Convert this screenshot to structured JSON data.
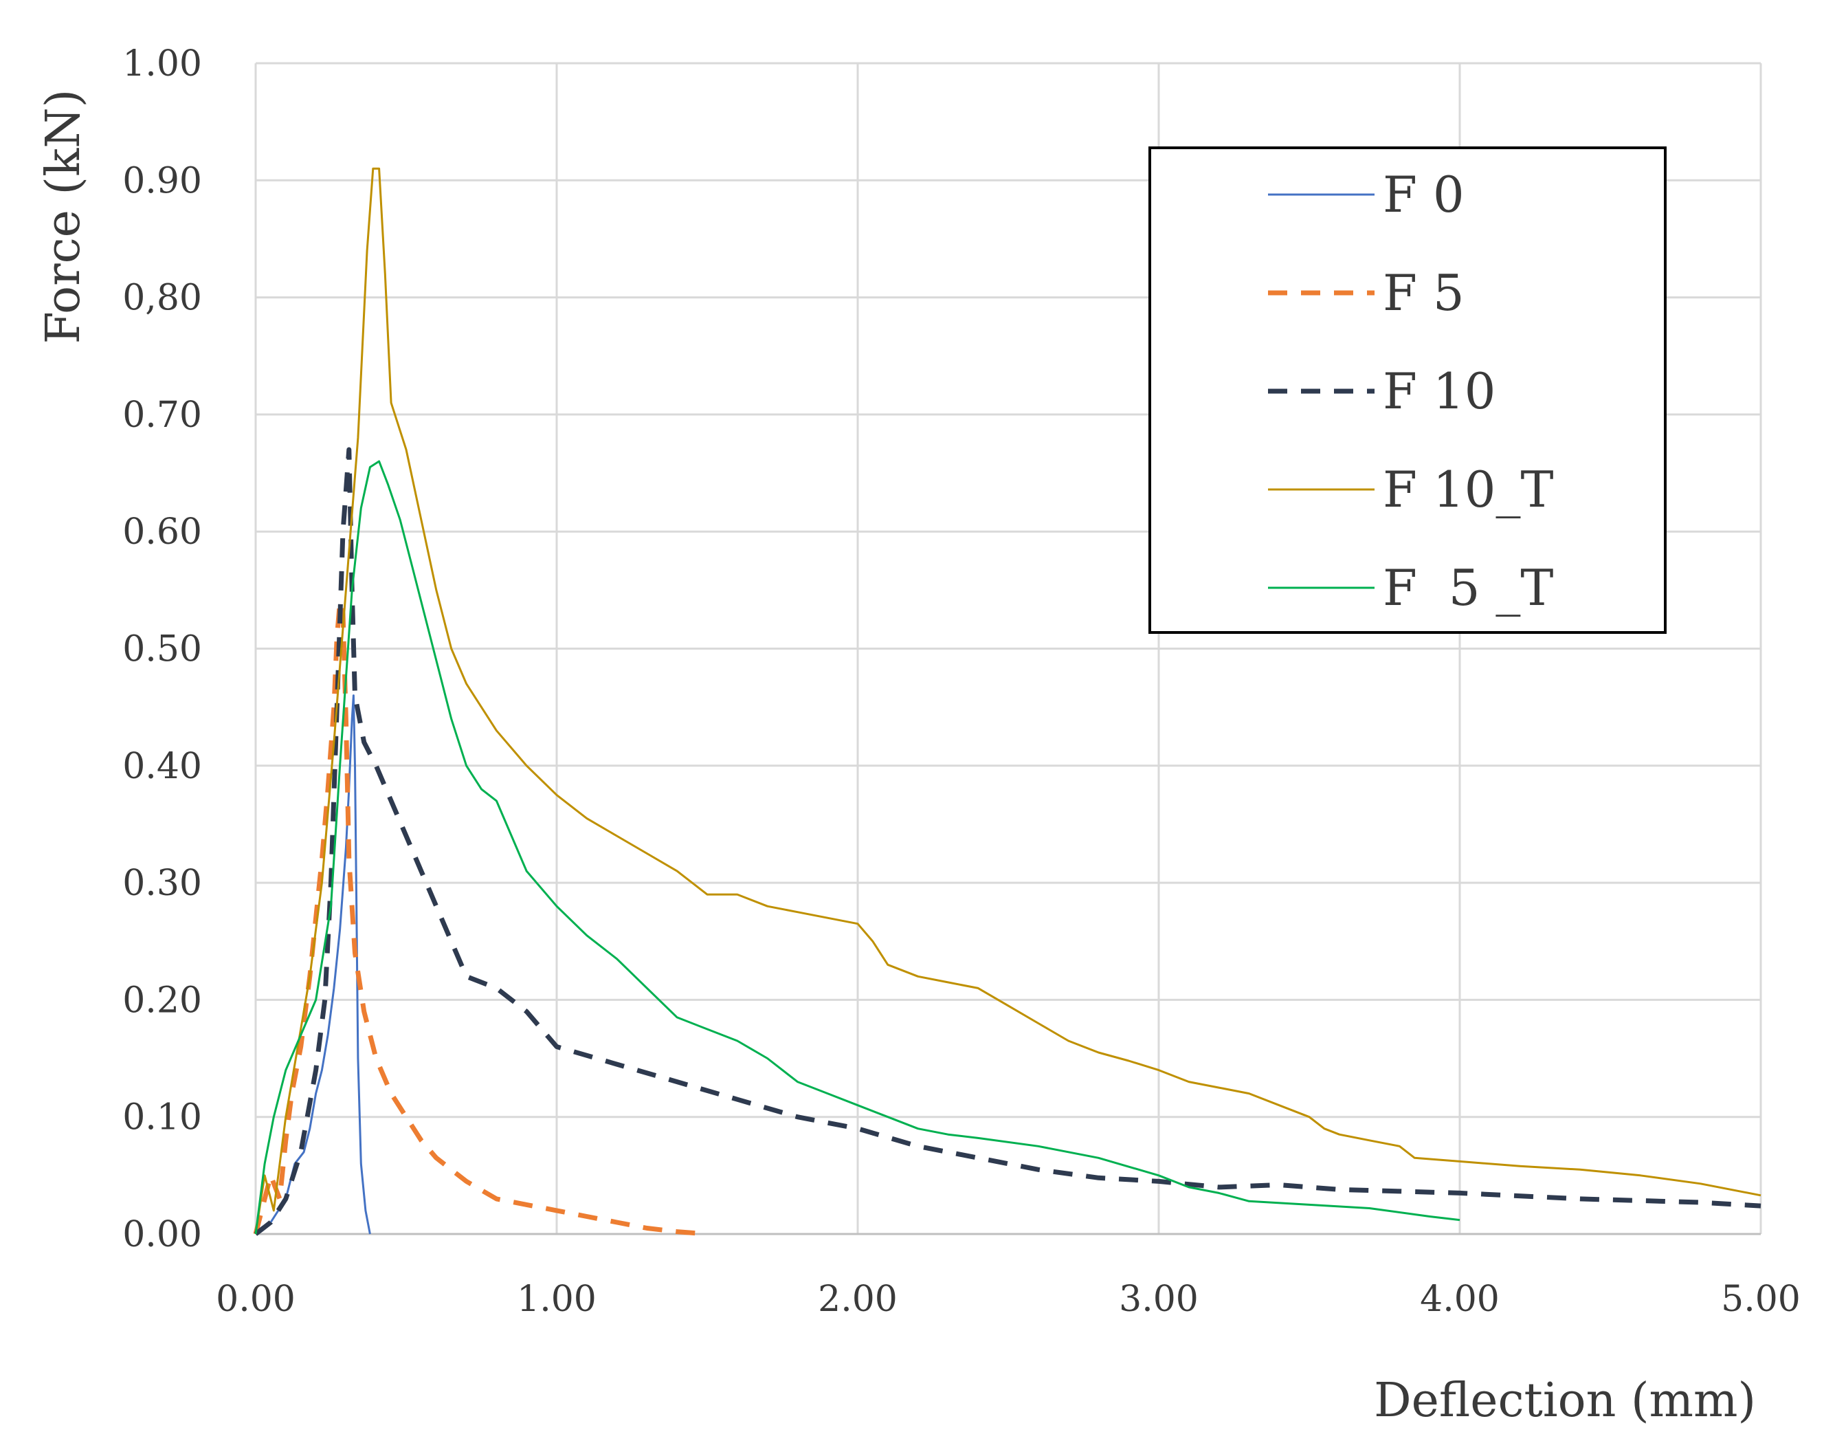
{
  "chart_data": {
    "type": "line",
    "title": "",
    "xlabel": "Deflection (mm)",
    "ylabel": "Force (kN)",
    "xlim": [
      0,
      5
    ],
    "ylim": [
      0,
      1
    ],
    "grid": true,
    "legend_position": "top-right",
    "x_tick_labels": [
      "0.00",
      "1.00",
      "2.00",
      "3.00",
      "4.00",
      "5.00"
    ],
    "y_tick_labels": [
      "0.00",
      "0.10",
      "0.20",
      "0.30",
      "0.40",
      "0.50",
      "0.60",
      "0.70",
      "0,80",
      "0.90",
      "1.00"
    ],
    "series": [
      {
        "name": "F 0",
        "color": "#4472c4",
        "dash": "solid",
        "points": [
          [
            0,
            0
          ],
          [
            0.05,
            0.01
          ],
          [
            0.1,
            0.03
          ],
          [
            0.13,
            0.06
          ],
          [
            0.16,
            0.07
          ],
          [
            0.18,
            0.09
          ],
          [
            0.2,
            0.12
          ],
          [
            0.22,
            0.14
          ],
          [
            0.24,
            0.17
          ],
          [
            0.26,
            0.21
          ],
          [
            0.28,
            0.26
          ],
          [
            0.3,
            0.33
          ],
          [
            0.31,
            0.38
          ],
          [
            0.32,
            0.44
          ],
          [
            0.325,
            0.46
          ],
          [
            0.33,
            0.4
          ],
          [
            0.335,
            0.28
          ],
          [
            0.34,
            0.15
          ],
          [
            0.35,
            0.06
          ],
          [
            0.365,
            0.02
          ],
          [
            0.38,
            0
          ]
        ]
      },
      {
        "name": "F 5",
        "color": "#ed7d31",
        "dash": "dashed",
        "points": [
          [
            0,
            0
          ],
          [
            0.05,
            0.05
          ],
          [
            0.08,
            0.03
          ],
          [
            0.1,
            0.08
          ],
          [
            0.12,
            0.12
          ],
          [
            0.15,
            0.16
          ],
          [
            0.18,
            0.22
          ],
          [
            0.2,
            0.27
          ],
          [
            0.22,
            0.32
          ],
          [
            0.24,
            0.38
          ],
          [
            0.26,
            0.45
          ],
          [
            0.27,
            0.51
          ],
          [
            0.28,
            0.54
          ],
          [
            0.29,
            0.53
          ],
          [
            0.3,
            0.44
          ],
          [
            0.31,
            0.32
          ],
          [
            0.33,
            0.24
          ],
          [
            0.36,
            0.19
          ],
          [
            0.4,
            0.15
          ],
          [
            0.45,
            0.12
          ],
          [
            0.5,
            0.1
          ],
          [
            0.55,
            0.08
          ],
          [
            0.6,
            0.065
          ],
          [
            0.7,
            0.045
          ],
          [
            0.8,
            0.03
          ],
          [
            0.9,
            0.025
          ],
          [
            1.0,
            0.02
          ],
          [
            1.1,
            0.015
          ],
          [
            1.2,
            0.01
          ],
          [
            1.3,
            0.005
          ],
          [
            1.4,
            0.002
          ],
          [
            1.5,
            0
          ]
        ]
      },
      {
        "name": "F 10",
        "color": "#2e3a4f",
        "dash": "dashed",
        "points": [
          [
            0,
            0
          ],
          [
            0.05,
            0.01
          ],
          [
            0.1,
            0.03
          ],
          [
            0.15,
            0.07
          ],
          [
            0.2,
            0.14
          ],
          [
            0.23,
            0.2
          ],
          [
            0.25,
            0.3
          ],
          [
            0.27,
            0.45
          ],
          [
            0.29,
            0.6
          ],
          [
            0.31,
            0.67
          ],
          [
            0.32,
            0.55
          ],
          [
            0.33,
            0.46
          ],
          [
            0.36,
            0.42
          ],
          [
            0.4,
            0.4
          ],
          [
            0.45,
            0.37
          ],
          [
            0.5,
            0.34
          ],
          [
            0.55,
            0.31
          ],
          [
            0.6,
            0.28
          ],
          [
            0.65,
            0.25
          ],
          [
            0.7,
            0.22
          ],
          [
            0.8,
            0.21
          ],
          [
            0.9,
            0.19
          ],
          [
            1.0,
            0.16
          ],
          [
            1.2,
            0.145
          ],
          [
            1.4,
            0.13
          ],
          [
            1.6,
            0.115
          ],
          [
            1.8,
            0.1
          ],
          [
            2.0,
            0.09
          ],
          [
            2.2,
            0.075
          ],
          [
            2.4,
            0.065
          ],
          [
            2.6,
            0.055
          ],
          [
            2.8,
            0.048
          ],
          [
            3.0,
            0.045
          ],
          [
            3.2,
            0.04
          ],
          [
            3.4,
            0.042
          ],
          [
            3.6,
            0.038
          ],
          [
            4.0,
            0.035
          ],
          [
            4.4,
            0.03
          ],
          [
            4.8,
            0.027
          ],
          [
            5.0,
            0.024
          ]
        ]
      },
      {
        "name": "F 10_T",
        "color": "#bf9000",
        "dash": "solid",
        "points": [
          [
            0,
            0
          ],
          [
            0.03,
            0.05
          ],
          [
            0.06,
            0.02
          ],
          [
            0.1,
            0.1
          ],
          [
            0.14,
            0.16
          ],
          [
            0.18,
            0.22
          ],
          [
            0.22,
            0.3
          ],
          [
            0.26,
            0.42
          ],
          [
            0.3,
            0.55
          ],
          [
            0.34,
            0.68
          ],
          [
            0.37,
            0.84
          ],
          [
            0.39,
            0.91
          ],
          [
            0.41,
            0.91
          ],
          [
            0.43,
            0.82
          ],
          [
            0.45,
            0.71
          ],
          [
            0.5,
            0.67
          ],
          [
            0.55,
            0.61
          ],
          [
            0.6,
            0.55
          ],
          [
            0.65,
            0.5
          ],
          [
            0.7,
            0.47
          ],
          [
            0.8,
            0.43
          ],
          [
            0.9,
            0.4
          ],
          [
            1.0,
            0.375
          ],
          [
            1.1,
            0.355
          ],
          [
            1.2,
            0.34
          ],
          [
            1.3,
            0.325
          ],
          [
            1.4,
            0.31
          ],
          [
            1.5,
            0.29
          ],
          [
            1.6,
            0.29
          ],
          [
            1.7,
            0.28
          ],
          [
            1.8,
            0.275
          ],
          [
            1.9,
            0.27
          ],
          [
            2.0,
            0.265
          ],
          [
            2.05,
            0.25
          ],
          [
            2.1,
            0.23
          ],
          [
            2.2,
            0.22
          ],
          [
            2.3,
            0.215
          ],
          [
            2.4,
            0.21
          ],
          [
            2.5,
            0.195
          ],
          [
            2.6,
            0.18
          ],
          [
            2.7,
            0.165
          ],
          [
            2.8,
            0.155
          ],
          [
            2.9,
            0.148
          ],
          [
            3.0,
            0.14
          ],
          [
            3.1,
            0.13
          ],
          [
            3.2,
            0.125
          ],
          [
            3.3,
            0.12
          ],
          [
            3.4,
            0.11
          ],
          [
            3.5,
            0.1
          ],
          [
            3.55,
            0.09
          ],
          [
            3.6,
            0.085
          ],
          [
            3.7,
            0.08
          ],
          [
            3.8,
            0.075
          ],
          [
            3.85,
            0.065
          ],
          [
            4.0,
            0.062
          ],
          [
            4.2,
            0.058
          ],
          [
            4.4,
            0.055
          ],
          [
            4.6,
            0.05
          ],
          [
            4.8,
            0.043
          ],
          [
            5.0,
            0.033
          ]
        ]
      },
      {
        "name": "F  5 _T",
        "color": "#00b050",
        "dash": "solid",
        "points": [
          [
            0,
            0
          ],
          [
            0.03,
            0.06
          ],
          [
            0.06,
            0.1
          ],
          [
            0.1,
            0.14
          ],
          [
            0.15,
            0.17
          ],
          [
            0.2,
            0.2
          ],
          [
            0.25,
            0.28
          ],
          [
            0.28,
            0.4
          ],
          [
            0.32,
            0.55
          ],
          [
            0.35,
            0.62
          ],
          [
            0.38,
            0.655
          ],
          [
            0.41,
            0.66
          ],
          [
            0.44,
            0.64
          ],
          [
            0.48,
            0.61
          ],
          [
            0.52,
            0.57
          ],
          [
            0.56,
            0.53
          ],
          [
            0.6,
            0.49
          ],
          [
            0.65,
            0.44
          ],
          [
            0.7,
            0.4
          ],
          [
            0.75,
            0.38
          ],
          [
            0.8,
            0.37
          ],
          [
            0.85,
            0.34
          ],
          [
            0.9,
            0.31
          ],
          [
            1.0,
            0.28
          ],
          [
            1.1,
            0.255
          ],
          [
            1.2,
            0.235
          ],
          [
            1.3,
            0.21
          ],
          [
            1.4,
            0.185
          ],
          [
            1.5,
            0.175
          ],
          [
            1.6,
            0.165
          ],
          [
            1.7,
            0.15
          ],
          [
            1.8,
            0.13
          ],
          [
            1.9,
            0.12
          ],
          [
            2.0,
            0.11
          ],
          [
            2.1,
            0.1
          ],
          [
            2.2,
            0.09
          ],
          [
            2.3,
            0.085
          ],
          [
            2.4,
            0.082
          ],
          [
            2.6,
            0.075
          ],
          [
            2.8,
            0.065
          ],
          [
            3.0,
            0.05
          ],
          [
            3.1,
            0.04
          ],
          [
            3.2,
            0.035
          ],
          [
            3.3,
            0.028
          ],
          [
            3.5,
            0.025
          ],
          [
            3.7,
            0.022
          ],
          [
            3.9,
            0.015
          ],
          [
            4.0,
            0.012
          ]
        ]
      }
    ]
  }
}
